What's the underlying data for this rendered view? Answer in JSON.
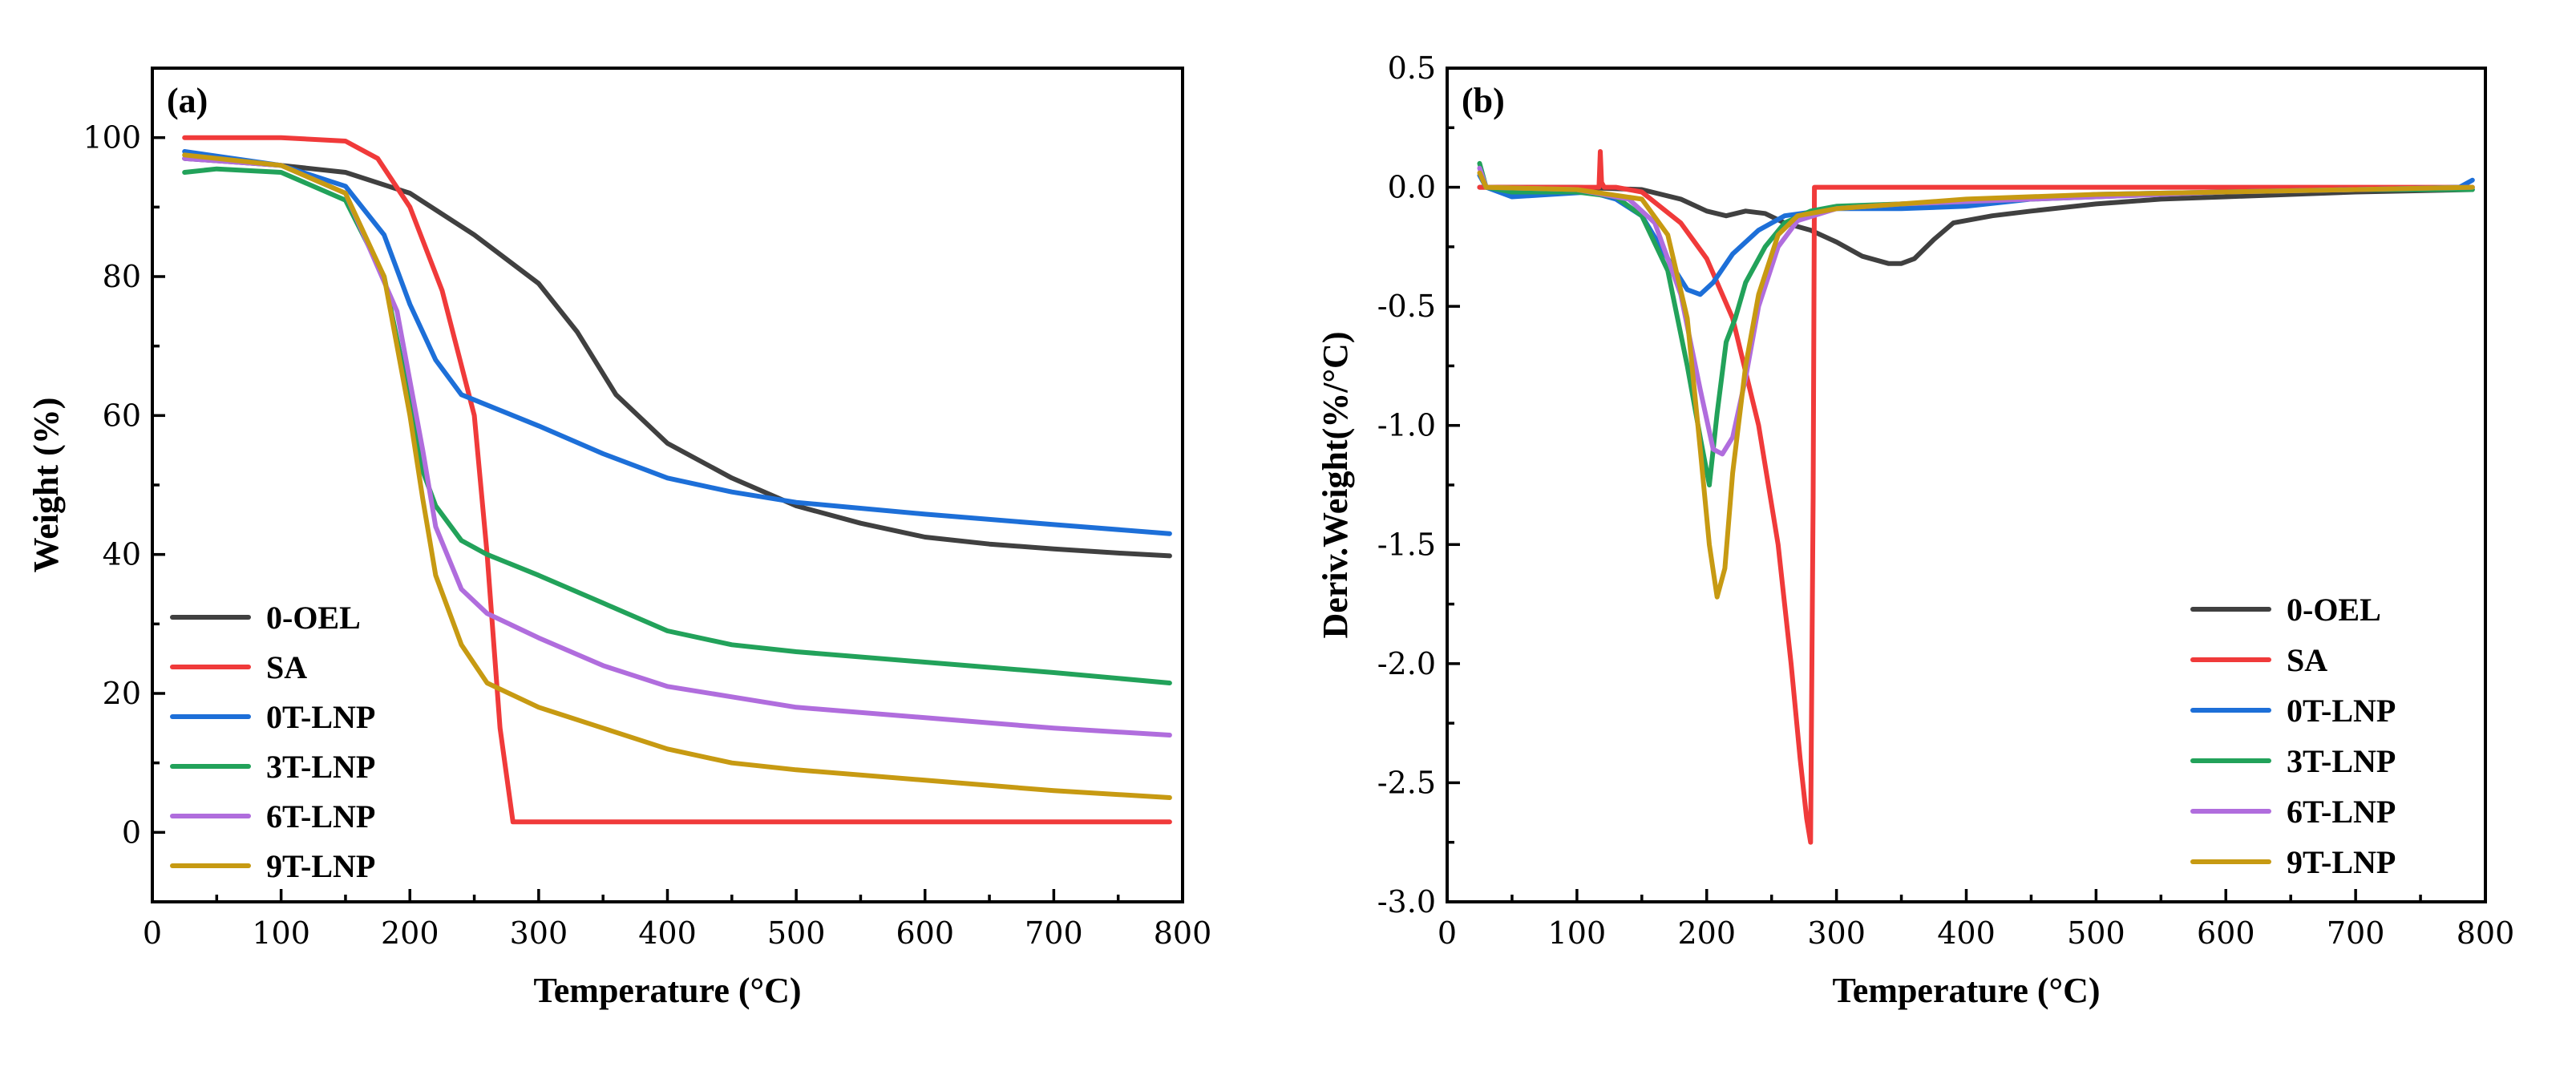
{
  "colors": {
    "0-OEL": "#404040",
    "SA": "#f03a3a",
    "0T-LNP": "#1d6fd8",
    "3T-LNP": "#22a25a",
    "6T-LNP": "#b06ddd",
    "9T-LNP": "#c79a12"
  },
  "chart_data": [
    {
      "type": "line",
      "panel_label": "(a)",
      "xlabel": "Temperature (°C)",
      "ylabel": "Weight (%)",
      "xlim": [
        0,
        800
      ],
      "ylim": [
        -10,
        110
      ],
      "xticks": [
        0,
        100,
        200,
        300,
        400,
        500,
        600,
        700,
        800
      ],
      "yticks": [
        0,
        20,
        40,
        60,
        80,
        100
      ],
      "legend_position": "bottom-left",
      "series": [
        {
          "name": "0-OEL",
          "x": [
            25,
            100,
            150,
            200,
            250,
            300,
            330,
            360,
            400,
            450,
            500,
            550,
            600,
            650,
            700,
            750,
            790
          ],
          "y": [
            97,
            96,
            95,
            92,
            86,
            79,
            72,
            63,
            56,
            51,
            47,
            44.5,
            42.5,
            41.5,
            40.8,
            40.2,
            39.8
          ]
        },
        {
          "name": "SA",
          "x": [
            25,
            100,
            150,
            175,
            200,
            225,
            250,
            260,
            270,
            280,
            300,
            400,
            500,
            600,
            700,
            790
          ],
          "y": [
            100,
            100,
            99.5,
            97,
            90,
            78,
            60,
            40,
            15,
            1.5,
            1.5,
            1.5,
            1.5,
            1.5,
            1.5,
            1.5
          ]
        },
        {
          "name": "0T-LNP",
          "x": [
            25,
            100,
            150,
            180,
            200,
            220,
            240,
            260,
            300,
            350,
            400,
            450,
            500,
            600,
            700,
            790
          ],
          "y": [
            98,
            96,
            93,
            86,
            76,
            68,
            63,
            61.5,
            58.5,
            54.5,
            51,
            49,
            47.5,
            45.8,
            44.3,
            43
          ]
        },
        {
          "name": "3T-LNP",
          "x": [
            25,
            50,
            100,
            150,
            180,
            200,
            210,
            220,
            240,
            260,
            300,
            350,
            400,
            450,
            500,
            600,
            700,
            790
          ],
          "y": [
            95,
            95.5,
            95,
            91,
            80,
            62,
            52,
            47,
            42,
            40,
            37,
            33,
            29,
            27,
            26,
            24.5,
            23,
            21.5
          ]
        },
        {
          "name": "6T-LNP",
          "x": [
            25,
            100,
            150,
            190,
            210,
            220,
            240,
            260,
            300,
            350,
            400,
            450,
            500,
            600,
            700,
            790
          ],
          "y": [
            97,
            96,
            92,
            75,
            55,
            44,
            35,
            31.5,
            28,
            24,
            21,
            19.5,
            18,
            16.5,
            15,
            14
          ]
        },
        {
          "name": "9T-LNP",
          "x": [
            25,
            100,
            150,
            180,
            200,
            210,
            220,
            240,
            260,
            300,
            350,
            400,
            450,
            500,
            600,
            700,
            790
          ],
          "y": [
            97.5,
            96,
            92,
            80,
            60,
            48,
            37,
            27,
            21.5,
            18,
            15,
            12,
            10,
            9,
            7.5,
            6,
            5
          ]
        }
      ]
    },
    {
      "type": "line",
      "panel_label": "(b)",
      "xlabel": "Temperature (°C)",
      "ylabel": "Deriv.Weight(%/°C)",
      "xlim": [
        0,
        800
      ],
      "ylim": [
        -3.0,
        0.5
      ],
      "xticks": [
        0,
        100,
        200,
        300,
        400,
        500,
        600,
        700,
        800
      ],
      "yticks": [
        -3.0,
        -2.5,
        -2.0,
        -1.5,
        -1.0,
        -0.5,
        0.0,
        0.5
      ],
      "ytick_labels": [
        "-3.0",
        "-2.5",
        "-2.0",
        "-1.5",
        "-1.0",
        "-0.5",
        "0.0",
        "0.5"
      ],
      "legend_position": "bottom-right",
      "series": [
        {
          "name": "0-OEL",
          "x": [
            25,
            100,
            150,
            180,
            200,
            215,
            230,
            245,
            260,
            280,
            300,
            320,
            340,
            350,
            360,
            375,
            390,
            420,
            450,
            500,
            550,
            600,
            700,
            790
          ],
          "y": [
            0,
            0,
            -0.01,
            -0.05,
            -0.1,
            -0.12,
            -0.1,
            -0.11,
            -0.15,
            -0.18,
            -0.23,
            -0.29,
            -0.32,
            -0.32,
            -0.3,
            -0.22,
            -0.15,
            -0.12,
            -0.1,
            -0.07,
            -0.05,
            -0.04,
            -0.02,
            -0.01
          ]
        },
        {
          "name": "SA",
          "x": [
            25,
            110,
            117,
            118,
            119,
            121,
            130,
            150,
            180,
            200,
            220,
            240,
            255,
            265,
            272,
            277,
            280,
            282,
            283,
            285,
            300,
            400,
            500,
            600,
            700,
            790
          ],
          "y": [
            0,
            0,
            0,
            0.15,
            0.02,
            0,
            0,
            -0.02,
            -0.15,
            -0.3,
            -0.55,
            -1.0,
            -1.5,
            -2.0,
            -2.4,
            -2.65,
            -2.75,
            -1.3,
            0,
            0,
            0,
            0,
            0,
            0,
            0,
            0
          ]
        },
        {
          "name": "0T-LNP",
          "x": [
            25,
            30,
            50,
            80,
            110,
            130,
            150,
            170,
            185,
            195,
            205,
            220,
            240,
            260,
            300,
            350,
            400,
            450,
            500,
            600,
            700,
            780,
            790
          ],
          "y": [
            0.05,
            0,
            -0.04,
            -0.03,
            -0.02,
            -0.05,
            -0.12,
            -0.3,
            -0.43,
            -0.45,
            -0.4,
            -0.28,
            -0.18,
            -0.12,
            -0.09,
            -0.09,
            -0.08,
            -0.05,
            -0.03,
            -0.02,
            -0.01,
            0,
            0.03
          ]
        },
        {
          "name": "3T-LNP",
          "x": [
            25,
            30,
            50,
            100,
            130,
            150,
            170,
            185,
            195,
            202,
            208,
            215,
            222,
            230,
            245,
            260,
            280,
            300,
            350,
            400,
            500,
            600,
            700,
            790
          ],
          "y": [
            0.1,
            0,
            -0.02,
            -0.02,
            -0.04,
            -0.12,
            -0.35,
            -0.75,
            -1.05,
            -1.25,
            -0.95,
            -0.65,
            -0.55,
            -0.4,
            -0.25,
            -0.15,
            -0.1,
            -0.08,
            -0.07,
            -0.06,
            -0.04,
            -0.02,
            -0.01,
            -0.01
          ]
        },
        {
          "name": "6T-LNP",
          "x": [
            25,
            30,
            100,
            140,
            160,
            180,
            195,
            205,
            212,
            220,
            230,
            240,
            255,
            270,
            300,
            350,
            400,
            500,
            600,
            700,
            790
          ],
          "y": [
            0.08,
            0,
            -0.01,
            -0.05,
            -0.15,
            -0.45,
            -0.85,
            -1.1,
            -1.12,
            -1.05,
            -0.8,
            -0.5,
            -0.25,
            -0.14,
            -0.09,
            -0.07,
            -0.06,
            -0.04,
            -0.02,
            -0.01,
            0
          ]
        },
        {
          "name": "9T-LNP",
          "x": [
            25,
            30,
            100,
            150,
            170,
            185,
            195,
            202,
            208,
            214,
            220,
            230,
            240,
            255,
            270,
            300,
            350,
            400,
            500,
            600,
            700,
            790
          ],
          "y": [
            0.06,
            0,
            -0.01,
            -0.05,
            -0.2,
            -0.55,
            -1.1,
            -1.5,
            -1.72,
            -1.6,
            -1.2,
            -0.75,
            -0.45,
            -0.2,
            -0.12,
            -0.09,
            -0.07,
            -0.05,
            -0.03,
            -0.02,
            -0.01,
            0
          ]
        }
      ]
    }
  ]
}
